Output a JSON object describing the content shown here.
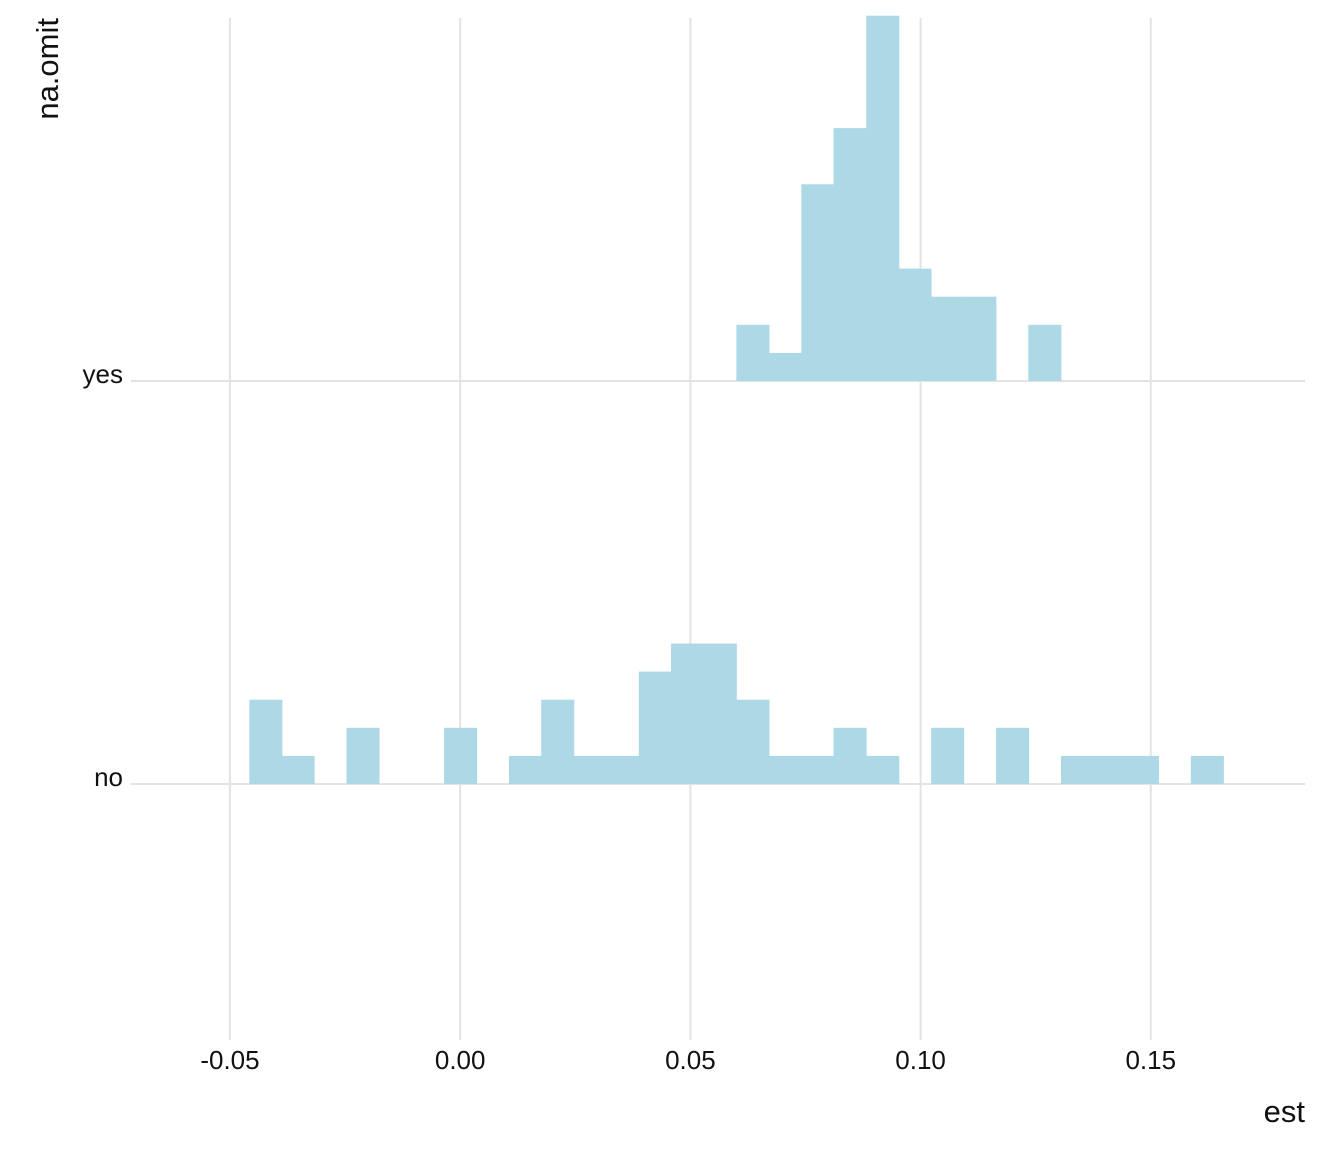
{
  "chart_data": {
    "type": "histogram-ridgeline",
    "xlabel": "est",
    "ylabel": "na.omit",
    "xlim": [
      -0.0715,
      0.1835
    ],
    "x_ticks": [
      -0.05,
      0.0,
      0.05,
      0.1,
      0.15
    ],
    "x_tick_labels": [
      "-0.05",
      "0.00",
      "0.05",
      "0.10",
      "0.15"
    ],
    "y_categories": [
      "yes",
      "no"
    ],
    "bin_width": 0.00705,
    "fill_color": "#ADD8E6",
    "grid": true,
    "legend": "none",
    "series": [
      {
        "name": "yes",
        "bins": [
          {
            "x0": 0.06,
            "count": 2
          },
          {
            "x0": 0.067,
            "count": 1
          },
          {
            "x0": 0.0741,
            "count": 7
          },
          {
            "x0": 0.0811,
            "count": 9
          },
          {
            "x0": 0.0882,
            "count": 13
          },
          {
            "x0": 0.0952,
            "count": 4
          },
          {
            "x0": 0.1023,
            "count": 3
          },
          {
            "x0": 0.1093,
            "count": 3
          },
          {
            "x0": 0.1234,
            "count": 2
          }
        ]
      },
      {
        "name": "no",
        "bins": [
          {
            "x0": -0.0458,
            "count": 3
          },
          {
            "x0": -0.0388,
            "count": 1
          },
          {
            "x0": -0.0247,
            "count": 2
          },
          {
            "x0": -0.0035,
            "count": 2
          },
          {
            "x0": 0.0106,
            "count": 1
          },
          {
            "x0": 0.0176,
            "count": 3
          },
          {
            "x0": 0.0247,
            "count": 1
          },
          {
            "x0": 0.0317,
            "count": 1
          },
          {
            "x0": 0.0388,
            "count": 4
          },
          {
            "x0": 0.0458,
            "count": 5
          },
          {
            "x0": 0.0529,
            "count": 5
          },
          {
            "x0": 0.06,
            "count": 3
          },
          {
            "x0": 0.067,
            "count": 1
          },
          {
            "x0": 0.0741,
            "count": 1
          },
          {
            "x0": 0.0811,
            "count": 2
          },
          {
            "x0": 0.0882,
            "count": 1
          },
          {
            "x0": 0.1023,
            "count": 2
          },
          {
            "x0": 0.1164,
            "count": 2
          },
          {
            "x0": 0.1305,
            "count": 1
          },
          {
            "x0": 0.1375,
            "count": 1
          },
          {
            "x0": 0.1446,
            "count": 1
          },
          {
            "x0": 0.1587,
            "count": 1
          }
        ]
      }
    ]
  }
}
